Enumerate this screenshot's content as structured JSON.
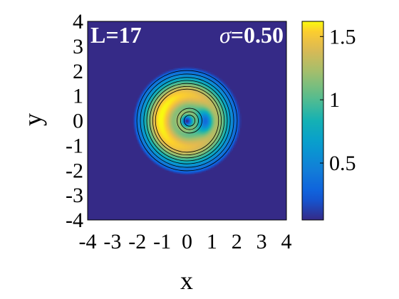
{
  "chart_data": {
    "type": "heatmap",
    "title": "",
    "xlabel": "x",
    "ylabel": "y",
    "xlim": [
      -4,
      4
    ],
    "ylim": [
      -4,
      4
    ],
    "x_ticks": [
      "-4",
      "-3",
      "-2",
      "-1",
      "0",
      "1",
      "2",
      "3",
      "4"
    ],
    "y_ticks": [
      "-4",
      "-3",
      "-2",
      "-1",
      "0",
      "1",
      "2",
      "3",
      "4"
    ],
    "annotation_left": "L=17",
    "annotation_right_symbol": "σ",
    "annotation_right_value": "=0.50",
    "colormap": "parula",
    "colorbar": {
      "range": [
        0.05,
        1.62
      ],
      "ticks": [
        "0.5",
        "1",
        "1.5"
      ],
      "tick_values": [
        0.5,
        1,
        1.5
      ]
    },
    "field": {
      "description_params": {
        "ring_radius": 1.05,
        "ring_width": 0.75,
        "peak": 1.62,
        "notch_angle_deg": 0,
        "notch_width": 0.28,
        "center_hole_radius": 0.45
      },
      "contour_levels": [
        0.15,
        0.3,
        0.45,
        0.6,
        0.75,
        0.9,
        1.05,
        1.2,
        1.35,
        1.5
      ],
      "grid_off": true
    },
    "colors": {
      "background": "#352a87",
      "axis": "#000000"
    }
  }
}
